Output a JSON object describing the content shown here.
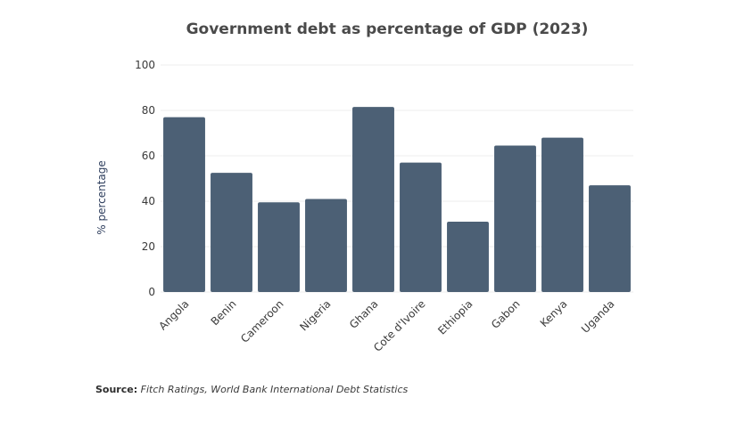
{
  "chart_data": {
    "type": "bar",
    "title": "Government debt as percentage of  GDP (2023)",
    "xlabel": "",
    "ylabel": "% percentage",
    "categories": [
      "Angola",
      "Benin",
      "Cameroon",
      "Nigeria",
      "Ghana",
      "Cote d'Ivoire",
      "Ethiopia",
      "Gabon",
      "Kenya",
      "Uganda"
    ],
    "values": [
      77,
      52.5,
      39.5,
      41,
      81.5,
      57,
      31,
      64.5,
      68,
      47
    ],
    "ylim": [
      0,
      100
    ],
    "yticks": [
      0,
      20,
      40,
      60,
      80,
      100
    ],
    "grid": true,
    "legend": "none",
    "bar_color": "#4c6075"
  },
  "source": {
    "label": "Source:",
    "text": "Fitch Ratings, World Bank International Debt Statistics"
  }
}
